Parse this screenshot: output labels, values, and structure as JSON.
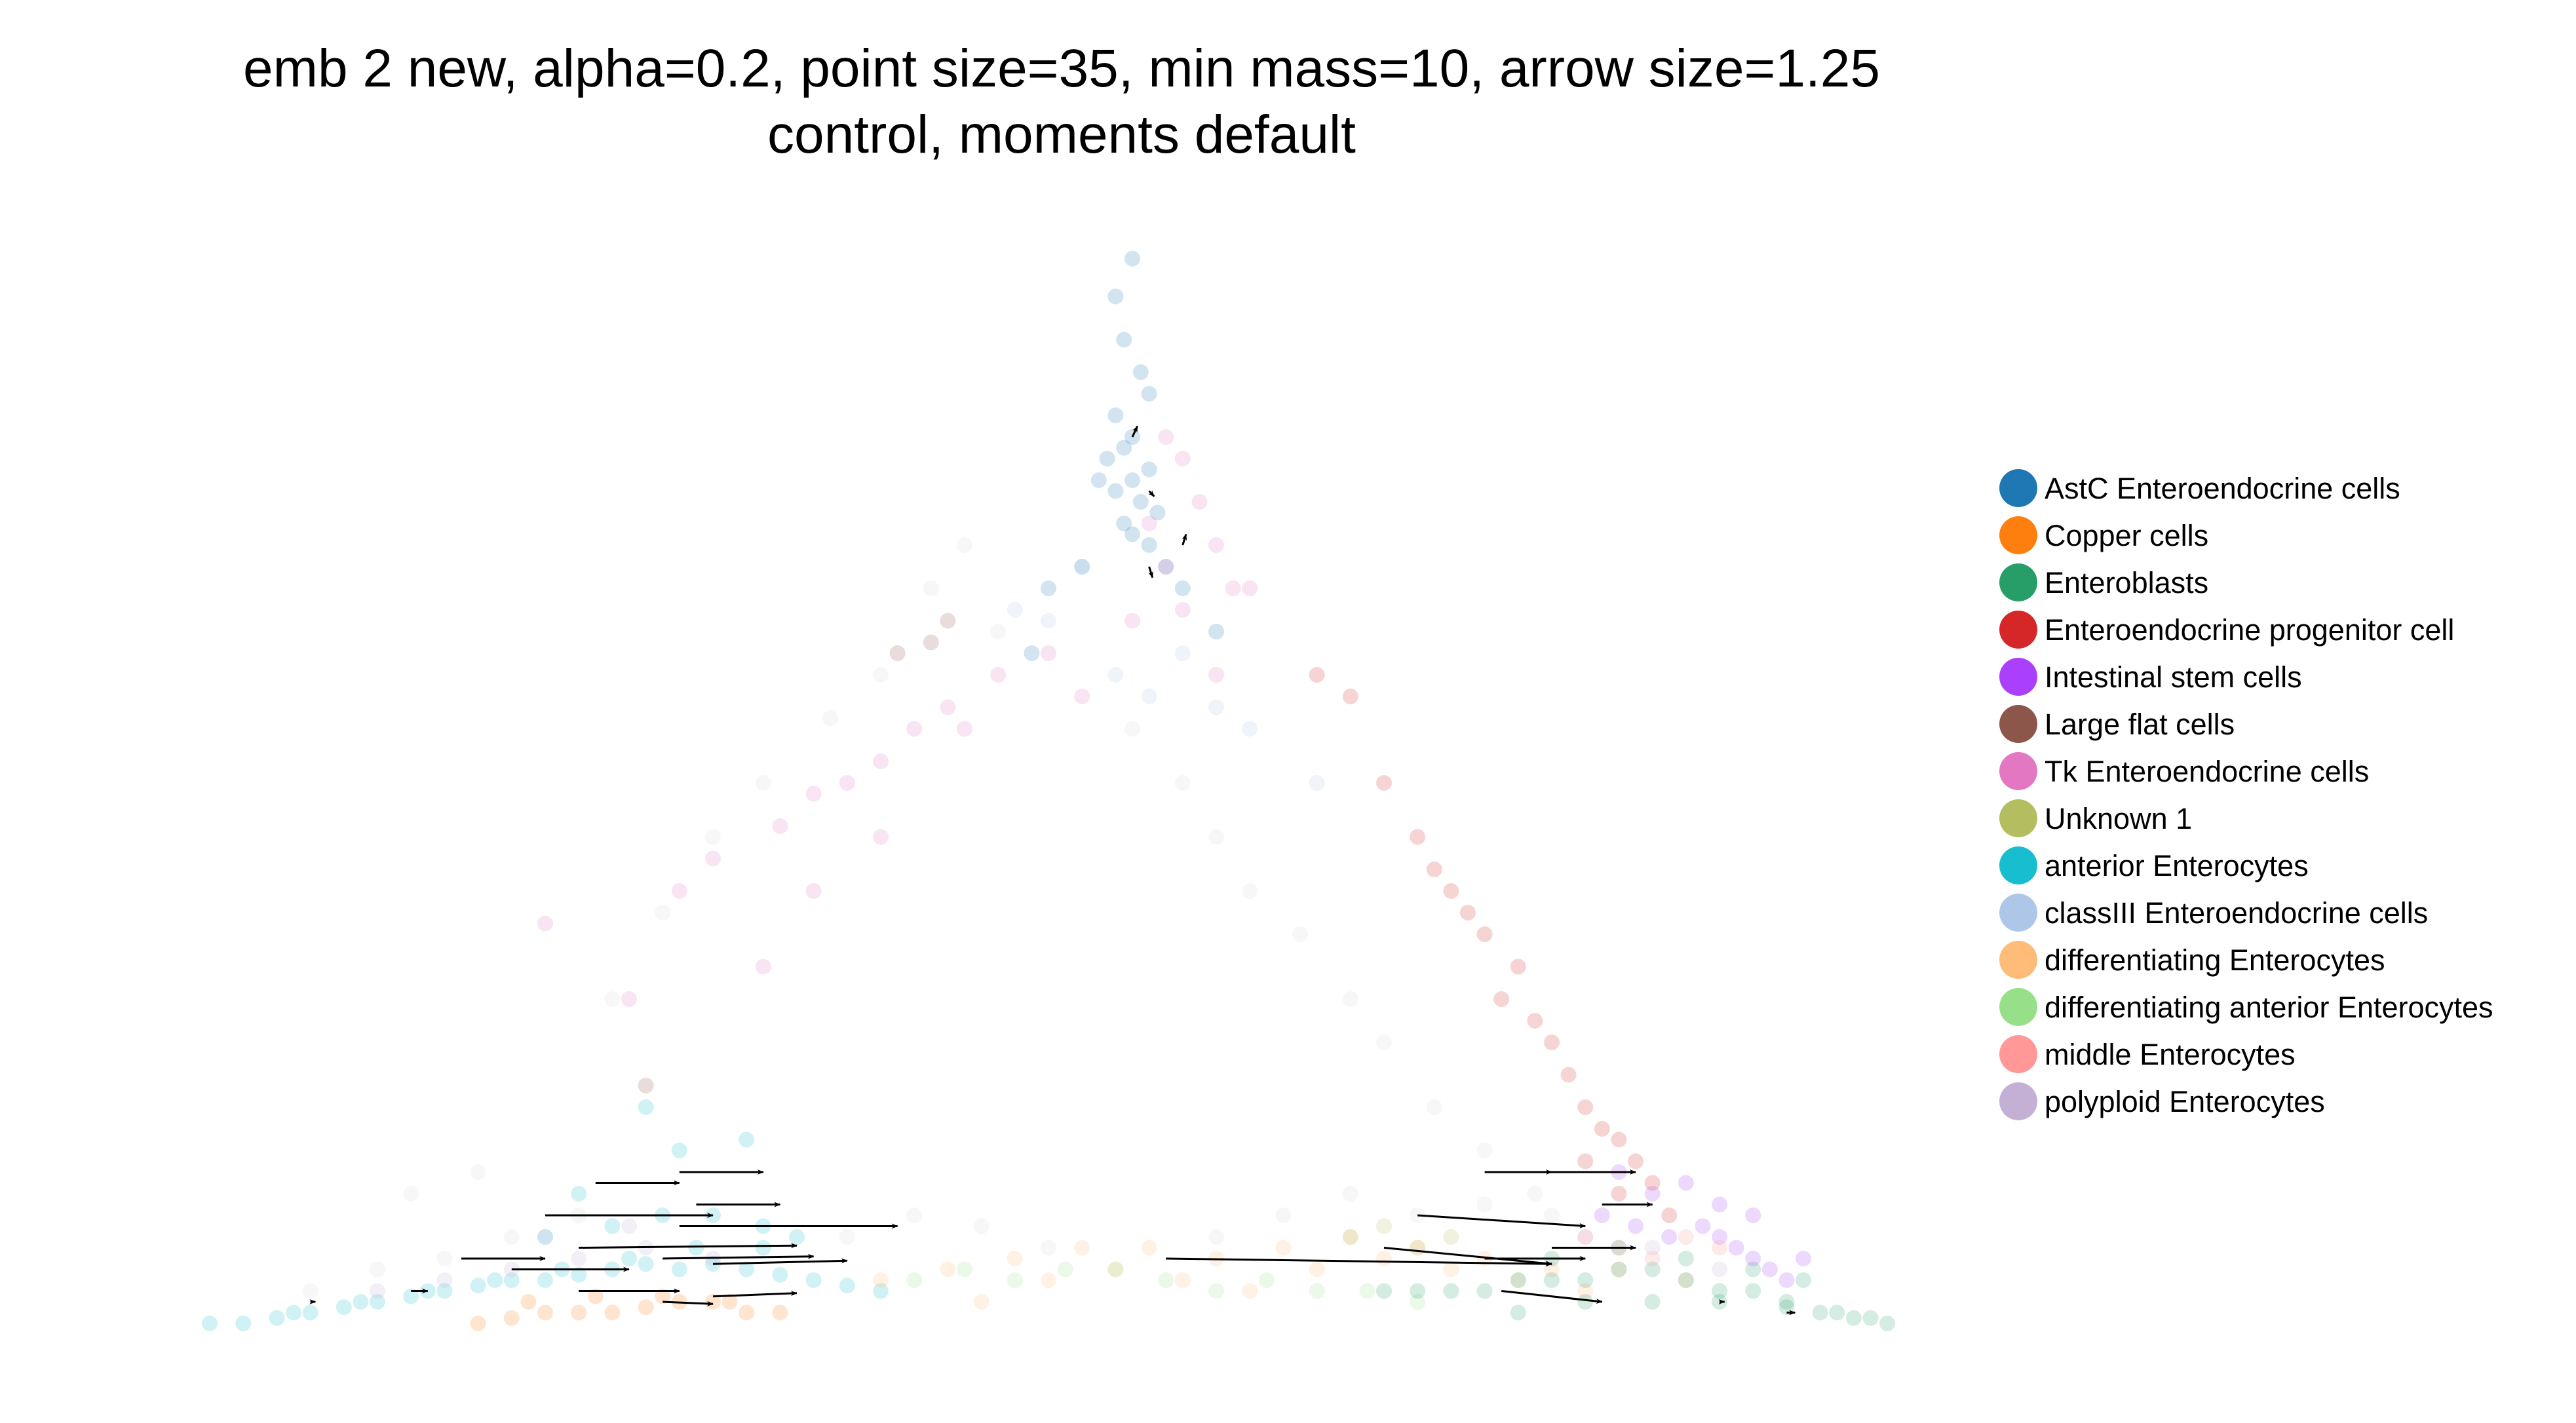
{
  "chart_data": {
    "type": "scatter",
    "title": [
      "emb 2 new, alpha=0.2, point size=35, min mass=10, arrow size=1.25",
      "control, moments default"
    ],
    "axes_visible": false,
    "grid": false,
    "legend_placement": "right",
    "point_alpha": 0.2,
    "legend": [
      {
        "name": "AstC Enteroendocrine cells",
        "color": "#1f77b4"
      },
      {
        "name": "Copper cells",
        "color": "#ff7f0e"
      },
      {
        "name": "Enteroblasts",
        "color": "#279e68"
      },
      {
        "name": "Enteroendocrine progenitor cell",
        "color": "#d62728"
      },
      {
        "name": "Intestinal stem cells",
        "color": "#aa40fc"
      },
      {
        "name": "Large flat cells",
        "color": "#8c564b"
      },
      {
        "name": "Tk Enteroendocrine cells",
        "color": "#e377c2"
      },
      {
        "name": "Unknown 1",
        "color": "#b5bd61"
      },
      {
        "name": "anterior Enterocytes",
        "color": "#17becf"
      },
      {
        "name": "classIII Enteroendocrine cells",
        "color": "#aec7e8"
      },
      {
        "name": "differentiating Enterocytes",
        "color": "#ffbb78"
      },
      {
        "name": "differentiating anterior Enterocytes",
        "color": "#98df8a"
      },
      {
        "name": "middle Enterocytes",
        "color": "#ff9896"
      },
      {
        "name": "polyploid Enterocytes",
        "color": "#c5b0d5"
      }
    ],
    "unlabeled_color": "#d9d9d9",
    "arrow_color": "#000000",
    "series": [
      {
        "name": "AstC Enteroendocrine cells",
        "x": [
          0.55,
          0.54,
          0.545,
          0.555,
          0.56,
          0.54,
          0.55,
          0.545,
          0.535,
          0.56,
          0.55,
          0.54,
          0.555,
          0.565,
          0.53,
          0.545,
          0.55,
          0.56,
          0.57,
          0.52,
          0.58,
          0.5,
          0.6,
          0.49
        ],
        "y": [
          0.985,
          0.95,
          0.91,
          0.88,
          0.86,
          0.84,
          0.82,
          0.81,
          0.8,
          0.79,
          0.78,
          0.77,
          0.76,
          0.75,
          0.78,
          0.74,
          0.73,
          0.72,
          0.7,
          0.7,
          0.68,
          0.68,
          0.64,
          0.62
        ]
      },
      {
        "name": "Tk Enteroendocrine cells",
        "x": [
          0.57,
          0.58,
          0.59,
          0.56,
          0.6,
          0.57,
          0.58,
          0.61,
          0.55,
          0.5,
          0.47,
          0.44,
          0.42,
          0.4,
          0.38,
          0.36,
          0.34,
          0.3,
          0.28,
          0.2,
          0.25,
          0.33,
          0.45,
          0.52,
          0.62,
          0.6,
          0.36,
          0.4
        ],
        "y": [
          0.82,
          0.8,
          0.76,
          0.74,
          0.72,
          0.7,
          0.66,
          0.68,
          0.65,
          0.62,
          0.6,
          0.57,
          0.55,
          0.52,
          0.5,
          0.49,
          0.46,
          0.43,
          0.4,
          0.37,
          0.3,
          0.33,
          0.55,
          0.58,
          0.68,
          0.6,
          0.4,
          0.45
        ]
      },
      {
        "name": "Enteroendocrine progenitor cell",
        "x": [
          0.66,
          0.68,
          0.7,
          0.72,
          0.73,
          0.74,
          0.75,
          0.76,
          0.78,
          0.77,
          0.79,
          0.8,
          0.81,
          0.82,
          0.83,
          0.84,
          0.85,
          0.86,
          0.84,
          0.82,
          0.87
        ],
        "y": [
          0.6,
          0.58,
          0.5,
          0.45,
          0.42,
          0.4,
          0.38,
          0.36,
          0.33,
          0.3,
          0.28,
          0.26,
          0.23,
          0.2,
          0.18,
          0.17,
          0.15,
          0.13,
          0.12,
          0.15,
          0.1
        ]
      },
      {
        "name": "Large flat cells",
        "x": [
          0.41,
          0.43,
          0.26,
          0.44
        ],
        "y": [
          0.62,
          0.63,
          0.22,
          0.65
        ]
      },
      {
        "name": "anterior Enterocytes",
        "x": [
          0.0,
          0.02,
          0.04,
          0.06,
          0.08,
          0.1,
          0.12,
          0.14,
          0.16,
          0.18,
          0.2,
          0.22,
          0.24,
          0.26,
          0.28,
          0.3,
          0.32,
          0.34,
          0.36,
          0.38,
          0.4,
          0.2,
          0.24,
          0.27,
          0.3,
          0.33,
          0.35,
          0.05,
          0.09,
          0.13,
          0.17,
          0.21,
          0.25,
          0.29,
          0.33,
          0.28,
          0.32,
          0.22,
          0.26
        ],
        "y": [
          0.0,
          0.0,
          0.005,
          0.01,
          0.015,
          0.02,
          0.025,
          0.03,
          0.035,
          0.04,
          0.04,
          0.045,
          0.05,
          0.055,
          0.05,
          0.055,
          0.05,
          0.045,
          0.04,
          0.035,
          0.03,
          0.08,
          0.09,
          0.1,
          0.1,
          0.09,
          0.08,
          0.01,
          0.02,
          0.03,
          0.04,
          0.05,
          0.06,
          0.07,
          0.07,
          0.16,
          0.17,
          0.12,
          0.2
        ]
      },
      {
        "name": "Copper cells",
        "x": [
          0.16,
          0.18,
          0.2,
          0.22,
          0.24,
          0.26,
          0.28,
          0.3,
          0.32,
          0.34,
          0.19,
          0.23,
          0.27,
          0.31
        ],
        "y": [
          0.0,
          0.005,
          0.01,
          0.01,
          0.01,
          0.015,
          0.02,
          0.02,
          0.01,
          0.01,
          0.02,
          0.025,
          0.025,
          0.02
        ]
      },
      {
        "name": "differentiating Enterocytes",
        "x": [
          0.4,
          0.44,
          0.48,
          0.52,
          0.56,
          0.6,
          0.64,
          0.68,
          0.72,
          0.76,
          0.8,
          0.84,
          0.88,
          0.46,
          0.5,
          0.54,
          0.58,
          0.62,
          0.66,
          0.7,
          0.74,
          0.78,
          0.82
        ],
        "y": [
          0.04,
          0.05,
          0.06,
          0.07,
          0.07,
          0.06,
          0.07,
          0.08,
          0.07,
          0.06,
          0.05,
          0.05,
          0.04,
          0.02,
          0.04,
          0.05,
          0.04,
          0.03,
          0.05,
          0.06,
          0.05,
          0.04,
          0.03
        ]
      },
      {
        "name": "differentiating anterior Enterocytes",
        "x": [
          0.42,
          0.45,
          0.48,
          0.51,
          0.54,
          0.57,
          0.6,
          0.63,
          0.66,
          0.69,
          0.72
        ],
        "y": [
          0.04,
          0.05,
          0.04,
          0.05,
          0.05,
          0.04,
          0.03,
          0.04,
          0.03,
          0.03,
          0.02
        ]
      },
      {
        "name": "Enteroblasts",
        "x": [
          0.7,
          0.72,
          0.74,
          0.76,
          0.78,
          0.8,
          0.82,
          0.84,
          0.86,
          0.88,
          0.9,
          0.92,
          0.94,
          0.96,
          0.98,
          1.0,
          0.78,
          0.82,
          0.86,
          0.9,
          0.94,
          0.97,
          0.8,
          0.84,
          0.88,
          0.92,
          0.95,
          0.99
        ],
        "y": [
          0.03,
          0.03,
          0.03,
          0.03,
          0.04,
          0.04,
          0.04,
          0.05,
          0.05,
          0.04,
          0.03,
          0.03,
          0.02,
          0.01,
          0.005,
          0.0,
          0.01,
          0.02,
          0.02,
          0.02,
          0.015,
          0.01,
          0.06,
          0.07,
          0.06,
          0.05,
          0.04,
          0.005
        ]
      },
      {
        "name": "Intestinal stem cells",
        "x": [
          0.83,
          0.85,
          0.87,
          0.89,
          0.9,
          0.91,
          0.92,
          0.93,
          0.94,
          0.88,
          0.86,
          0.84,
          0.92,
          0.95,
          0.9
        ],
        "y": [
          0.1,
          0.09,
          0.08,
          0.09,
          0.08,
          0.07,
          0.06,
          0.05,
          0.04,
          0.13,
          0.12,
          0.14,
          0.1,
          0.06,
          0.11
        ]
      },
      {
        "name": "polyploid Enterocytes",
        "x": [
          0.1,
          0.14,
          0.18,
          0.22,
          0.26,
          0.3,
          0.86,
          0.9,
          0.82,
          0.2,
          0.25
        ],
        "y": [
          0.03,
          0.04,
          0.05,
          0.06,
          0.07,
          0.06,
          0.07,
          0.05,
          0.08,
          0.08,
          0.09
        ]
      },
      {
        "name": "Unknown 1",
        "x": [
          0.68,
          0.7,
          0.72,
          0.74
        ],
        "y": [
          0.08,
          0.09,
          0.07,
          0.08
        ]
      },
      {
        "name": "middle Enterocytes",
        "x": [
          0.82,
          0.84,
          0.86,
          0.88,
          0.9
        ],
        "y": [
          0.08,
          0.07,
          0.06,
          0.08,
          0.07
        ]
      },
      {
        "name": "classIII Enteroendocrine cells",
        "x": [
          0.5,
          0.52,
          0.54,
          0.48,
          0.56,
          0.6,
          0.62,
          0.66,
          0.58
        ],
        "y": [
          0.65,
          0.7,
          0.6,
          0.66,
          0.58,
          0.57,
          0.55,
          0.5,
          0.62
        ]
      }
    ],
    "unlabeled_points": {
      "x": [
        0.45,
        0.43,
        0.47,
        0.4,
        0.37,
        0.33,
        0.3,
        0.27,
        0.24,
        0.55,
        0.58,
        0.6,
        0.62,
        0.65,
        0.68,
        0.7,
        0.73,
        0.76,
        0.79,
        0.8,
        0.38,
        0.42,
        0.46,
        0.5,
        0.22,
        0.18,
        0.14,
        0.1,
        0.06,
        0.12,
        0.16,
        0.6,
        0.64,
        0.68,
        0.72,
        0.76
      ],
      "y": [
        0.72,
        0.68,
        0.64,
        0.6,
        0.56,
        0.5,
        0.45,
        0.38,
        0.3,
        0.55,
        0.5,
        0.45,
        0.4,
        0.36,
        0.3,
        0.26,
        0.2,
        0.16,
        0.12,
        0.1,
        0.08,
        0.1,
        0.09,
        0.07,
        0.1,
        0.08,
        0.06,
        0.05,
        0.03,
        0.12,
        0.14,
        0.08,
        0.1,
        0.12,
        0.1,
        0.11
      ]
    },
    "arrows": [
      {
        "x0": 0.55,
        "y0": 0.82,
        "x1": 0.553,
        "y1": 0.83
      },
      {
        "x0": 0.56,
        "y0": 0.77,
        "x1": 0.563,
        "y1": 0.765
      },
      {
        "x0": 0.56,
        "y0": 0.7,
        "x1": 0.562,
        "y1": 0.69
      },
      {
        "x0": 0.58,
        "y0": 0.72,
        "x1": 0.582,
        "y1": 0.73
      },
      {
        "x0": 0.06,
        "y0": 0.02,
        "x1": 0.063,
        "y1": 0.02
      },
      {
        "x0": 0.12,
        "y0": 0.03,
        "x1": 0.13,
        "y1": 0.03
      },
      {
        "x0": 0.15,
        "y0": 0.06,
        "x1": 0.2,
        "y1": 0.06
      },
      {
        "x0": 0.18,
        "y0": 0.05,
        "x1": 0.25,
        "y1": 0.05
      },
      {
        "x0": 0.22,
        "y0": 0.07,
        "x1": 0.35,
        "y1": 0.072
      },
      {
        "x0": 0.2,
        "y0": 0.1,
        "x1": 0.3,
        "y1": 0.1
      },
      {
        "x0": 0.27,
        "y0": 0.06,
        "x1": 0.36,
        "y1": 0.062
      },
      {
        "x0": 0.28,
        "y0": 0.09,
        "x1": 0.41,
        "y1": 0.09
      },
      {
        "x0": 0.3,
        "y0": 0.055,
        "x1": 0.38,
        "y1": 0.058
      },
      {
        "x0": 0.22,
        "y0": 0.03,
        "x1": 0.28,
        "y1": 0.03
      },
      {
        "x0": 0.3,
        "y0": 0.025,
        "x1": 0.35,
        "y1": 0.028
      },
      {
        "x0": 0.27,
        "y0": 0.02,
        "x1": 0.3,
        "y1": 0.018
      },
      {
        "x0": 0.28,
        "y0": 0.14,
        "x1": 0.33,
        "y1": 0.14
      },
      {
        "x0": 0.23,
        "y0": 0.13,
        "x1": 0.28,
        "y1": 0.13
      },
      {
        "x0": 0.29,
        "y0": 0.11,
        "x1": 0.34,
        "y1": 0.11
      },
      {
        "x0": 0.57,
        "y0": 0.06,
        "x1": 0.8,
        "y1": 0.055
      },
      {
        "x0": 0.7,
        "y0": 0.07,
        "x1": 0.8,
        "y1": 0.055
      },
      {
        "x0": 0.72,
        "y0": 0.1,
        "x1": 0.82,
        "y1": 0.09
      },
      {
        "x0": 0.76,
        "y0": 0.06,
        "x1": 0.82,
        "y1": 0.06
      },
      {
        "x0": 0.77,
        "y0": 0.03,
        "x1": 0.83,
        "y1": 0.02
      },
      {
        "x0": 0.8,
        "y0": 0.07,
        "x1": 0.85,
        "y1": 0.07
      },
      {
        "x0": 0.76,
        "y0": 0.14,
        "x1": 0.8,
        "y1": 0.14
      },
      {
        "x0": 0.8,
        "y0": 0.14,
        "x1": 0.85,
        "y1": 0.14
      },
      {
        "x0": 0.83,
        "y0": 0.11,
        "x1": 0.86,
        "y1": 0.11
      },
      {
        "x0": 0.9,
        "y0": 0.02,
        "x1": 0.903,
        "y1": 0.02
      },
      {
        "x0": 0.94,
        "y0": 0.01,
        "x1": 0.945,
        "y1": 0.01
      }
    ]
  }
}
